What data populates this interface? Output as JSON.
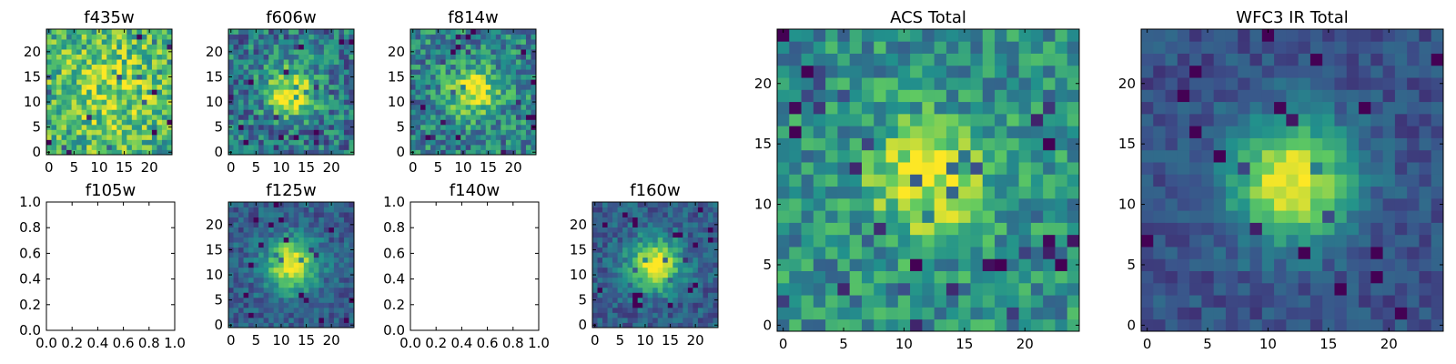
{
  "colormap": [
    "#440154",
    "#3b528b",
    "#21918c",
    "#5ec962",
    "#fde725"
  ],
  "chart_data": [
    {
      "id": "f435w",
      "type": "heatmap",
      "title": "f435w",
      "grid_size": 25,
      "pattern": "noise",
      "peak": 0.2,
      "noise": 0.55,
      "base": 0.62,
      "xticks": [
        0,
        5,
        10,
        15,
        20
      ],
      "yticks": [
        0,
        5,
        10,
        15,
        20
      ],
      "xlim": [
        -0.5,
        24.5
      ],
      "ylim": [
        -0.5,
        24.5
      ]
    },
    {
      "id": "f606w",
      "type": "heatmap",
      "title": "f606w",
      "grid_size": 25,
      "pattern": "source",
      "peak": 0.55,
      "noise": 0.5,
      "base": 0.4,
      "xticks": [
        0,
        5,
        10,
        15,
        20
      ],
      "yticks": [
        0,
        5,
        10,
        15,
        20
      ],
      "xlim": [
        -0.5,
        24.5
      ],
      "ylim": [
        -0.5,
        24.5
      ]
    },
    {
      "id": "f814w",
      "type": "heatmap",
      "title": "f814w",
      "grid_size": 25,
      "pattern": "source",
      "peak": 0.5,
      "noise": 0.5,
      "base": 0.45,
      "xticks": [
        0,
        5,
        10,
        15,
        20
      ],
      "yticks": [
        0,
        5,
        10,
        15,
        20
      ],
      "xlim": [
        -0.5,
        24.5
      ],
      "ylim": [
        -0.5,
        24.5
      ]
    },
    {
      "id": "f105w",
      "type": "empty",
      "title": "f105w",
      "xticks": [
        0.0,
        0.2,
        0.4,
        0.6,
        0.8,
        1.0
      ],
      "yticks": [
        0.0,
        0.2,
        0.4,
        0.6,
        0.8,
        1.0
      ],
      "xtick_labels": [
        "0.0",
        "0.2",
        "0.4",
        "0.6",
        "0.8",
        "1.0"
      ],
      "ytick_labels": [
        "0.0",
        "0.2",
        "0.4",
        "0.6",
        "0.8",
        "1.0"
      ],
      "xlim": [
        0,
        1
      ],
      "ylim": [
        0,
        1
      ]
    },
    {
      "id": "f125w",
      "type": "heatmap",
      "title": "f125w",
      "grid_size": 25,
      "pattern": "source",
      "peak": 0.72,
      "noise": 0.28,
      "base": 0.3,
      "xticks": [
        0,
        5,
        10,
        15,
        20
      ],
      "yticks": [
        0,
        5,
        10,
        15,
        20
      ],
      "xlim": [
        -0.5,
        24.5
      ],
      "ylim": [
        -0.5,
        24.5
      ]
    },
    {
      "id": "f140w",
      "type": "empty",
      "title": "f140w",
      "xticks": [
        0.0,
        0.2,
        0.4,
        0.6,
        0.8,
        1.0
      ],
      "yticks": [
        0.0,
        0.2,
        0.4,
        0.6,
        0.8,
        1.0
      ],
      "xtick_labels": [
        "0.0",
        "0.2",
        "0.4",
        "0.6",
        "0.8",
        "1.0"
      ],
      "ytick_labels": [
        "0.0",
        "0.2",
        "0.4",
        "0.6",
        "0.8",
        "1.0"
      ],
      "xlim": [
        0,
        1
      ],
      "ylim": [
        0,
        1
      ]
    },
    {
      "id": "f160w",
      "type": "heatmap",
      "title": "f160w",
      "grid_size": 25,
      "pattern": "source",
      "peak": 0.72,
      "noise": 0.28,
      "base": 0.3,
      "xticks": [
        0,
        5,
        10,
        15,
        20
      ],
      "yticks": [
        0,
        5,
        10,
        15,
        20
      ],
      "xlim": [
        -0.5,
        24.5
      ],
      "ylim": [
        -0.5,
        24.5
      ]
    },
    {
      "id": "acs-total",
      "type": "heatmap",
      "title": "ACS Total",
      "grid_size": 25,
      "pattern": "source",
      "peak": 0.45,
      "noise": 0.42,
      "base": 0.5,
      "xticks": [
        0,
        5,
        10,
        15,
        20
      ],
      "yticks": [
        0,
        5,
        10,
        15,
        20
      ],
      "xlim": [
        -0.5,
        24.5
      ],
      "ylim": [
        -0.5,
        24.5
      ]
    },
    {
      "id": "wfc3-ir-total",
      "type": "heatmap",
      "title": "WFC3 IR Total",
      "grid_size": 25,
      "pattern": "source",
      "peak": 0.75,
      "noise": 0.2,
      "base": 0.25,
      "xticks": [
        0,
        5,
        10,
        15,
        20
      ],
      "yticks": [
        0,
        5,
        10,
        15,
        20
      ],
      "xlim": [
        -0.5,
        24.5
      ],
      "ylim": [
        -0.5,
        24.5
      ]
    }
  ]
}
